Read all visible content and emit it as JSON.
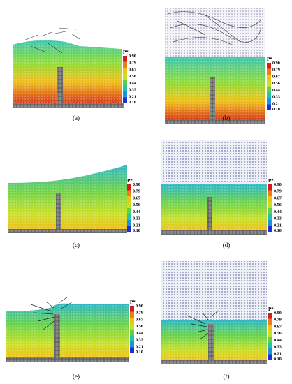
{
  "legend": {
    "title": "P*",
    "ticks": [
      "0.90",
      "0.79",
      "0.67",
      "0.56",
      "0.44",
      "0.33",
      "0.21",
      "0.10"
    ],
    "colors": [
      "#d7191c",
      "#f07b1a",
      "#f4c20d",
      "#c6e02a",
      "#5fd04a",
      "#1fc7a8",
      "#1f8fe0",
      "#1f2fd8"
    ]
  },
  "panels": [
    {
      "id": "a",
      "caption": "(a)"
    },
    {
      "id": "b",
      "caption": "(b)"
    },
    {
      "id": "c",
      "caption": "(c)"
    },
    {
      "id": "d",
      "caption": "(d)"
    },
    {
      "id": "e",
      "caption": "(e)"
    },
    {
      "id": "f",
      "caption": "(f)"
    }
  ]
}
